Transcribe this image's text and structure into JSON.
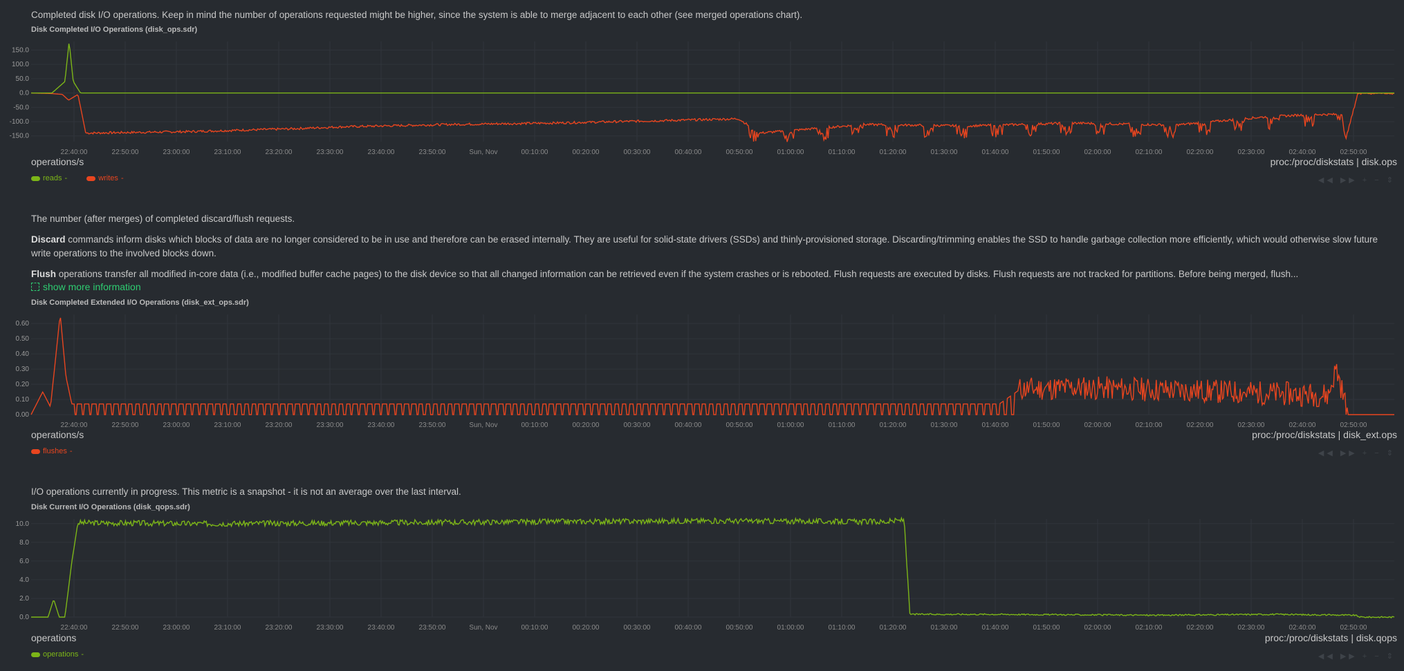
{
  "charts": [
    {
      "id": "disk_ops",
      "description": "Completed disk I/O operations. Keep in mind the number of operations requested might be higher, since the system is able to merge adjacent to each other (see merged operations chart).",
      "title": "Disk Completed I/O Operations (disk_ops.sdr)",
      "units": "operations/s",
      "source": "proc:/proc/diskstats | disk.ops",
      "yticks": [
        "150.0",
        "100.0",
        "50.0",
        "0.0",
        "-50.0",
        "-100.0",
        "-150.0"
      ],
      "legend": [
        {
          "name": "reads",
          "label": "reads",
          "color": "#7cb518"
        },
        {
          "name": "writes",
          "label": "writes",
          "color": "#e8451f"
        }
      ]
    },
    {
      "id": "disk_ext_ops",
      "description_intro": "The number (after merges) of completed discard/flush requests.",
      "discard_term": "Discard",
      "discard_text": " commands inform disks which blocks of data are no longer considered to be in use and therefore can be erased internally. They are useful for solid-state drivers (SSDs) and thinly-provisioned storage. Discarding/trimming enables the SSD to handle garbage collection more efficiently, which would otherwise slow future write operations to the involved blocks down.",
      "flush_term": "Flush",
      "flush_text": " operations transfer all modified in-core data (i.e., modified buffer cache pages) to the disk device so that all changed information can be retrieved even if the system crashes or is rebooted. Flush requests are executed by disks. Flush requests are not tracked for partitions. Before being merged, flush...",
      "show_more": "show more information",
      "title": "Disk Completed Extended I/O Operations (disk_ext_ops.sdr)",
      "units": "operations/s",
      "source": "proc:/proc/diskstats | disk_ext.ops",
      "yticks": [
        "0.60",
        "0.50",
        "0.40",
        "0.30",
        "0.20",
        "0.10",
        "0.00"
      ],
      "legend": [
        {
          "name": "flushes",
          "label": "flushes",
          "color": "#e8451f"
        }
      ]
    },
    {
      "id": "disk_qops",
      "description": "I/O operations currently in progress. This metric is a snapshot - it is not an average over the last interval.",
      "title": "Disk Current I/O Operations (disk_qops.sdr)",
      "units": "operations",
      "source": "proc:/proc/diskstats | disk.qops",
      "yticks": [
        "10.0",
        "8.0",
        "6.0",
        "4.0",
        "2.0",
        "0.0"
      ],
      "legend": [
        {
          "name": "operations",
          "label": "operations",
          "color": "#7cb518"
        }
      ]
    }
  ],
  "xticks": [
    "22:40:00",
    "22:50:00",
    "23:00:00",
    "23:10:00",
    "23:20:00",
    "23:30:00",
    "23:40:00",
    "23:50:00",
    "Sun, Nov",
    "00:10:00",
    "00:20:00",
    "00:30:00",
    "00:40:00",
    "00:50:00",
    "01:00:00",
    "01:10:00",
    "01:20:00",
    "01:30:00",
    "01:40:00",
    "01:50:00",
    "02:00:00",
    "02:10:00",
    "02:20:00",
    "02:30:00",
    "02:40:00",
    "02:50:00"
  ],
  "legend_suffix": "-",
  "toolbox": "◀◀ ▶▶ + − ⇕",
  "chart_data": [
    {
      "type": "line",
      "title": "Disk Completed I/O Operations (disk_ops.sdr)",
      "ylabel": "operations/s",
      "ylim": [
        -170,
        180
      ],
      "x_range": [
        "22:35:00",
        "02:57:00"
      ],
      "series": [
        {
          "name": "reads",
          "points": [
            [
              0,
              0
            ],
            [
              4,
              0
            ],
            [
              6.5,
              40
            ],
            [
              7.3,
              180
            ],
            [
              8.1,
              40
            ],
            [
              9.5,
              0
            ],
            [
              262,
              0
            ]
          ]
        },
        {
          "name": "writes",
          "points": [
            [
              0,
              0
            ],
            [
              4,
              -2
            ],
            [
              6,
              -5
            ],
            [
              7.2,
              -25
            ],
            [
              9,
              -5
            ],
            [
              10.5,
              -140
            ],
            [
              30,
              -135
            ],
            [
              50,
              -125
            ],
            [
              60,
              -118
            ],
            [
              80,
              -110
            ],
            [
              100,
              -105
            ],
            [
              120,
              -97
            ],
            [
              136,
              -90
            ],
            [
              140,
              -140
            ],
            [
              160,
              -110
            ],
            [
              180,
              -115
            ],
            [
              200,
              -105
            ],
            [
              220,
              -112
            ],
            [
              236,
              -85
            ],
            [
              246,
              -75
            ],
            [
              252,
              -75
            ],
            [
              253,
              -140
            ],
            [
              255,
              0
            ],
            [
              262,
              0
            ]
          ]
        }
      ]
    },
    {
      "type": "line",
      "title": "Disk Completed Extended I/O Operations (disk_ext_ops.sdr)",
      "ylabel": "operations/s",
      "ylim": [
        0,
        0.66
      ],
      "series": [
        {
          "name": "flushes",
          "points": [
            [
              0,
              0
            ],
            [
              3,
              0.15
            ],
            [
              5,
              0.05
            ],
            [
              7.5,
              0.66
            ],
            [
              9,
              0.25
            ],
            [
              10.5,
              0.07
            ],
            [
              30,
              0.07
            ],
            [
              60,
              0.07
            ],
            [
              100,
              0.07
            ],
            [
              150,
              0.07
            ],
            [
              200,
              0.07
            ],
            [
              250,
              0.07
            ],
            [
              255,
              0.16
            ],
            [
              270,
              0.17
            ],
            [
              300,
              0.15
            ],
            [
              335,
              0.12
            ],
            [
              337,
              0.3
            ],
            [
              340,
              0
            ],
            [
              352,
              0
            ]
          ]
        }
      ]
    },
    {
      "type": "line",
      "title": "Disk Current I/O Operations (disk_qops.sdr)",
      "ylabel": "operations",
      "ylim": [
        0,
        10.5
      ],
      "series": [
        {
          "name": "operations",
          "points": [
            [
              0,
              0
            ],
            [
              3,
              0
            ],
            [
              4,
              1.9
            ],
            [
              5,
              0
            ],
            [
              6,
              0
            ],
            [
              7.2,
              5.8
            ],
            [
              8.3,
              10.1
            ],
            [
              30,
              10
            ],
            [
              60,
              10.1
            ],
            [
              90,
              10.2
            ],
            [
              120,
              10.3
            ],
            [
              152,
              10.2
            ],
            [
              155,
              10.4
            ],
            [
              156,
              0.3
            ],
            [
              170,
              0.3
            ],
            [
              200,
              0.2
            ],
            [
              220,
              0.3
            ],
            [
              235,
              0.2
            ],
            [
              236,
              0
            ],
            [
              242,
              0
            ]
          ]
        }
      ]
    }
  ]
}
